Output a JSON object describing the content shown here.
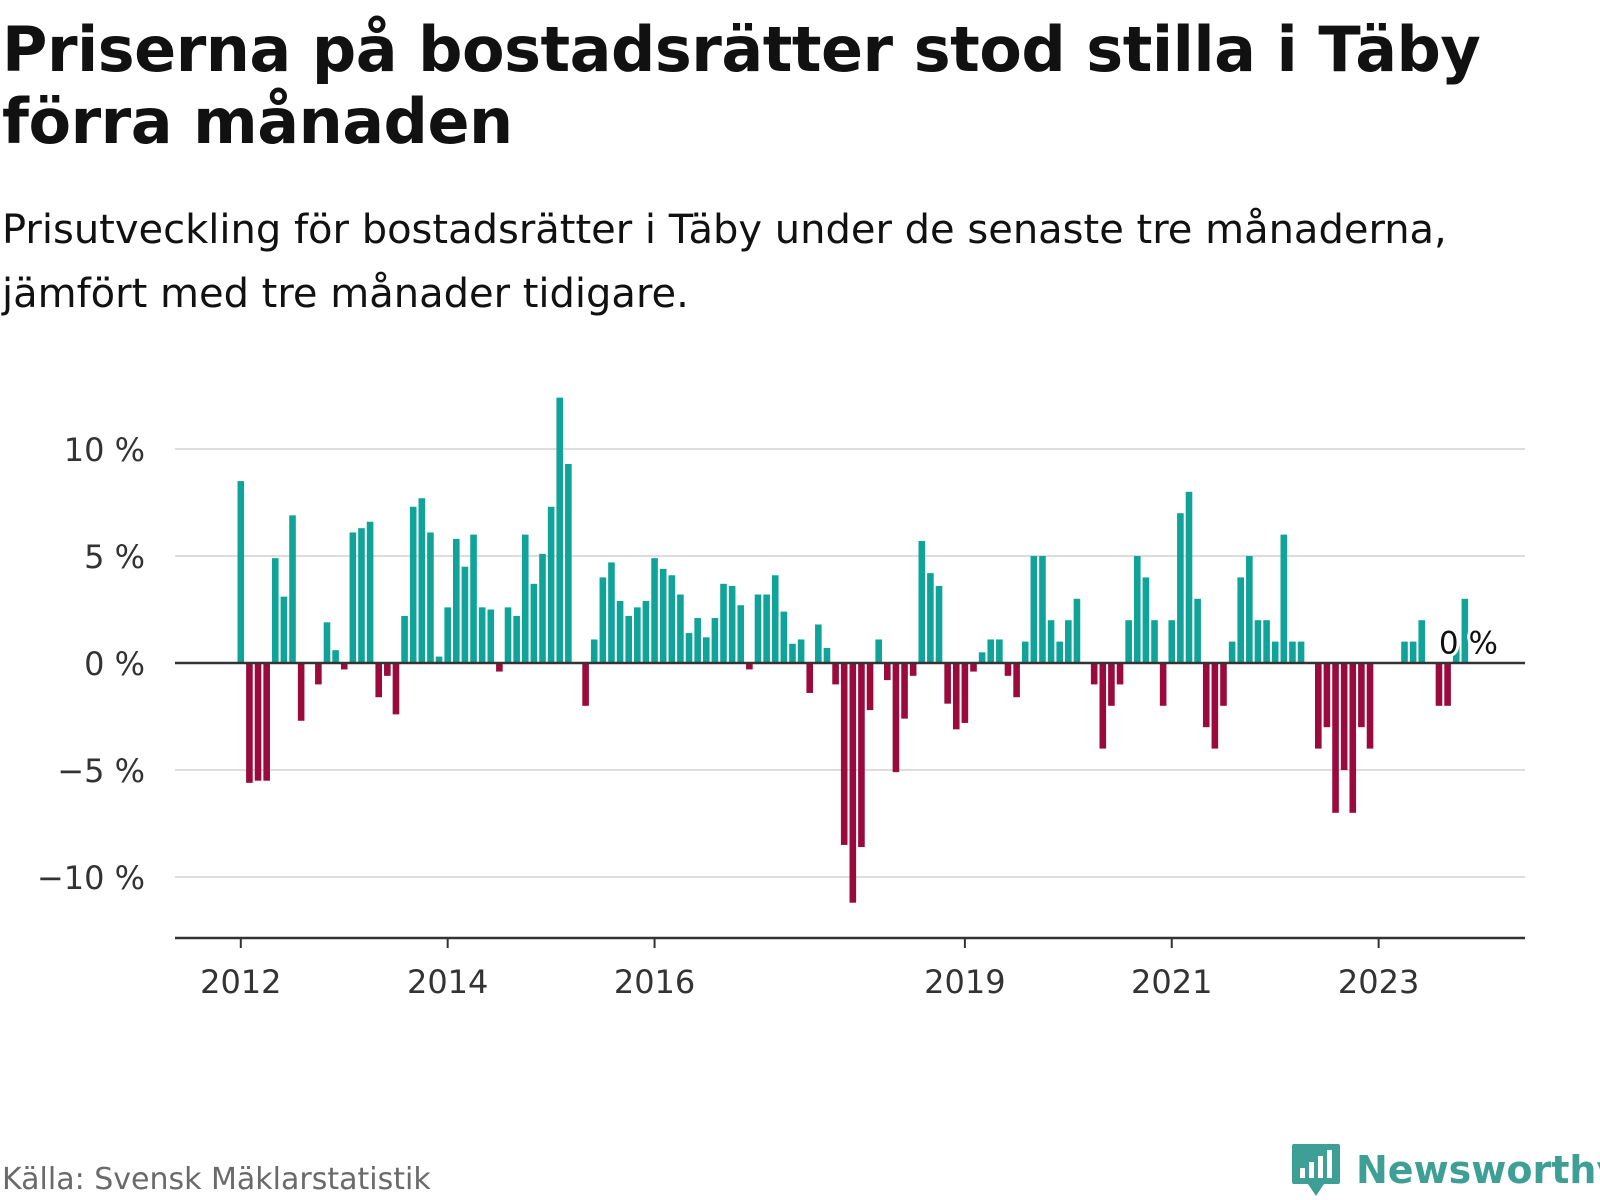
{
  "title": "Priserna på bostadsrätter stod stilla i Täby förra månaden",
  "subtitle": "Prisutveckling för bostadsrätter i Täby under de senaste tre månaderna, jämfört med tre månader tidigare.",
  "source": "Källa: Svensk Mäklarstatistik",
  "brand": "Newsworthy",
  "colors": {
    "positive": "#0fa39a",
    "negative": "#9b0a3c",
    "grid": "#dddddd",
    "axis": "#333333",
    "brand": "#3d9f95"
  },
  "chart_data": {
    "type": "bar",
    "title": "Priserna på bostadsrätter stod stilla i Täby förra månaden",
    "xlabel": "",
    "ylabel": "",
    "unit": "%",
    "ylim": [
      -12.5,
      12.5
    ],
    "yticks": [
      10,
      5,
      0,
      -5,
      -10
    ],
    "ytick_labels": [
      "10 %",
      "5 %",
      "0 %",
      "−5 %",
      "−10 %"
    ],
    "xticks": [
      {
        "index": 0,
        "label": "2012"
      },
      {
        "index": 24,
        "label": "2014"
      },
      {
        "index": 48,
        "label": "2016"
      },
      {
        "index": 84,
        "label": "2019"
      },
      {
        "index": 108,
        "label": "2021"
      },
      {
        "index": 132,
        "label": "2023"
      }
    ],
    "start": "2012-01",
    "annotation": {
      "index": 141,
      "label": "0 %"
    },
    "values": [
      8.5,
      -5.6,
      -5.5,
      -5.5,
      4.9,
      3.1,
      6.9,
      -2.7,
      0.0,
      -1.0,
      1.9,
      0.6,
      -0.3,
      6.1,
      6.3,
      6.6,
      -1.6,
      -0.6,
      -2.4,
      2.2,
      7.3,
      7.7,
      6.1,
      0.3,
      2.6,
      5.8,
      4.5,
      6.0,
      2.6,
      2.5,
      -0.4,
      2.6,
      2.2,
      6.0,
      3.7,
      5.1,
      7.3,
      12.4,
      9.3,
      0.0,
      -2.0,
      1.1,
      4.0,
      4.7,
      2.9,
      2.2,
      2.6,
      2.9,
      4.9,
      4.4,
      4.1,
      3.2,
      1.4,
      2.1,
      1.2,
      2.1,
      3.7,
      3.6,
      2.7,
      -0.3,
      3.2,
      3.2,
      4.1,
      2.4,
      0.9,
      1.1,
      -1.4,
      1.8,
      0.7,
      -1.0,
      -8.5,
      -11.2,
      -8.6,
      -2.2,
      1.1,
      -0.8,
      -5.1,
      -2.6,
      -0.6,
      5.7,
      4.2,
      3.6,
      -1.9,
      -3.1,
      -2.8,
      -0.4,
      0.5,
      1.1,
      1.1,
      -0.6,
      -1.6,
      1.0,
      5.0,
      5.0,
      2.0,
      1.0,
      2.0,
      3.0,
      0.0,
      -1.0,
      -4.0,
      -2.0,
      -1.0,
      2.0,
      5.0,
      4.0,
      2.0,
      -2.0,
      2.0,
      7.0,
      8.0,
      3.0,
      -3.0,
      -4.0,
      -2.0,
      1.0,
      4.0,
      5.0,
      2.0,
      2.0,
      1.0,
      6.0,
      1.0,
      1.0,
      0.0,
      -4.0,
      -3.0,
      -7.0,
      -5.0,
      -7.0,
      -3.0,
      -4.0,
      0.0,
      0.0,
      0.0,
      1.0,
      1.0,
      2.0,
      0.0,
      -2.0,
      -2.0,
      1.0,
      3.0,
      0.0
    ]
  }
}
